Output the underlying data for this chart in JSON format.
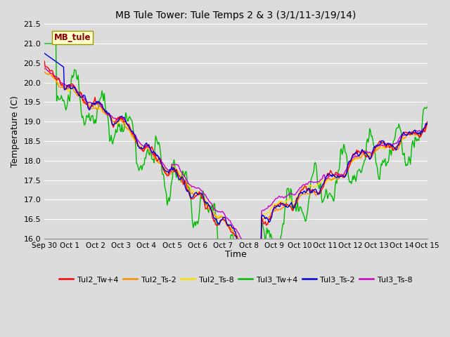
{
  "title": "MB Tule Tower: Tule Temps 2 & 3 (3/1/11-3/19/14)",
  "xlabel": "Time",
  "ylabel": "Temperature (C)",
  "ylim": [
    16.0,
    21.5
  ],
  "yticks": [
    16.0,
    16.5,
    17.0,
    17.5,
    18.0,
    18.5,
    19.0,
    19.5,
    20.0,
    20.5,
    21.0,
    21.5
  ],
  "xtick_labels": [
    "Sep 30",
    "Oct 1",
    "Oct 2",
    "Oct 3",
    "Oct 4",
    "Oct 5",
    "Oct 6",
    "Oct 7",
    "Oct 8",
    "Oct 9",
    "Oct 10",
    "Oct 11",
    "Oct 12",
    "Oct 13",
    "Oct 14",
    "Oct 15"
  ],
  "background_color": "#dcdcdc",
  "plot_bg_color": "#dcdcdc",
  "grid_color": "#ffffff",
  "watermark_text": "MB_tule",
  "watermark_color": "#8b0000",
  "watermark_bg": "#ffffcc",
  "watermark_edge": "#999900",
  "series": [
    {
      "label": "Tul2_Tw+4",
      "color": "#ff0000",
      "lw": 1.0
    },
    {
      "label": "Tul2_Ts-2",
      "color": "#ff8c00",
      "lw": 1.0
    },
    {
      "label": "Tul2_Ts-8",
      "color": "#ffdd00",
      "lw": 1.0
    },
    {
      "label": "Tul3_Tw+4",
      "color": "#00bb00",
      "lw": 1.0
    },
    {
      "label": "Tul3_Ts-2",
      "color": "#0000dd",
      "lw": 1.0
    },
    {
      "label": "Tul3_Ts-8",
      "color": "#cc00cc",
      "lw": 1.0
    }
  ]
}
